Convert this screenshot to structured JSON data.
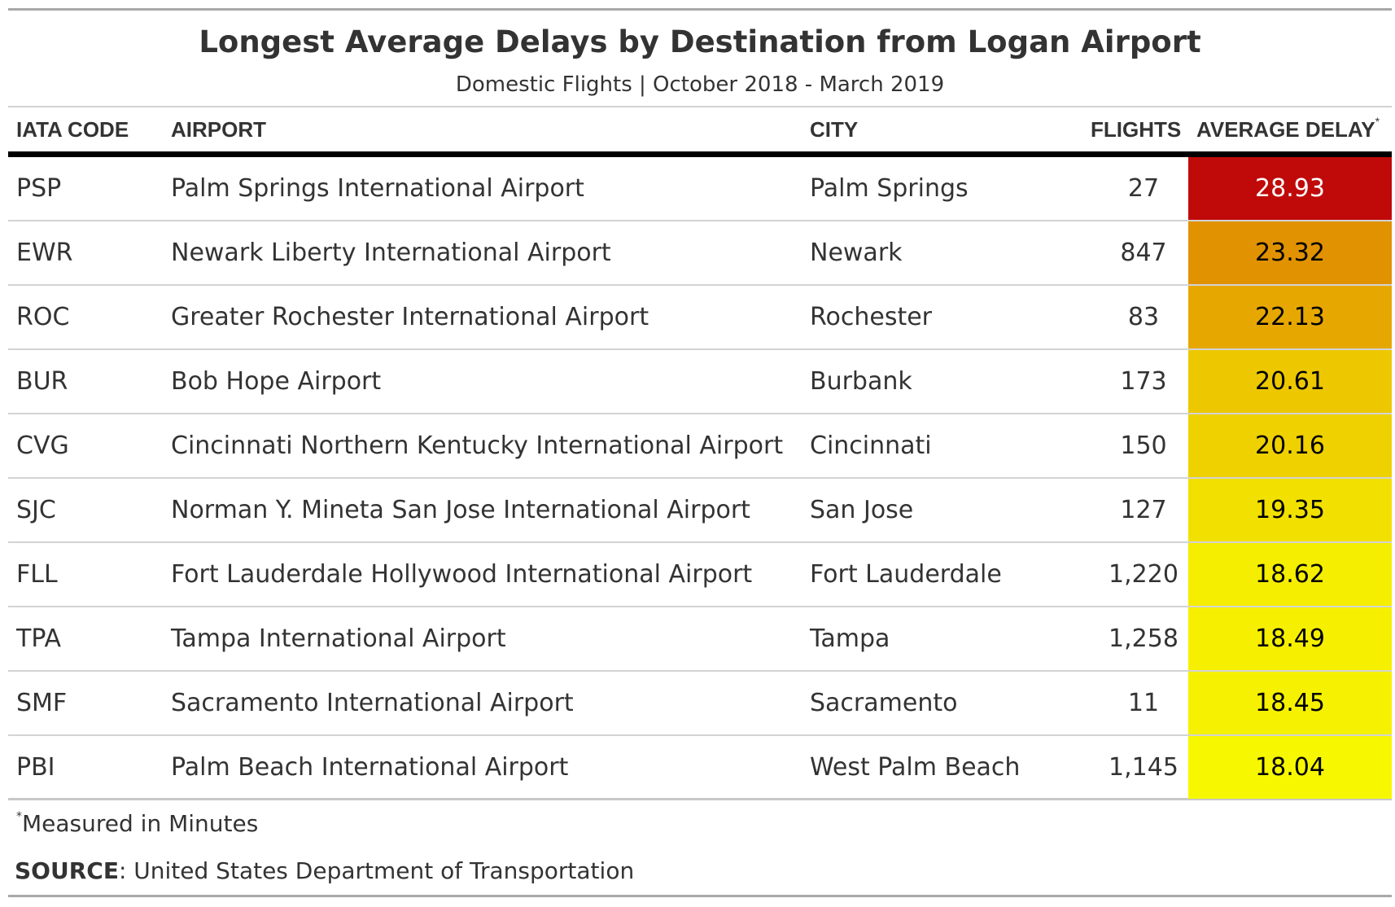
{
  "chart_data": {
    "type": "table",
    "title": "Longest Average Delays by Destination from Logan Airport",
    "subtitle": "Domestic Flights | October 2018 - March 2019",
    "columns": [
      "IATA CODE",
      "AIRPORT",
      "CITY",
      "FLIGHTS",
      "AVERAGE DELAY"
    ],
    "delay_marker": "*",
    "rows": [
      {
        "code": "PSP",
        "airport": "Palm Springs International Airport",
        "city": "Palm Springs",
        "flights": "27",
        "delay": 28.93,
        "delay_label": "28.93",
        "color": "#c00a0a",
        "text_color": "#ffffff"
      },
      {
        "code": "EWR",
        "airport": "Newark Liberty International Airport",
        "city": "Newark",
        "flights": "847",
        "delay": 23.32,
        "delay_label": "23.32",
        "color": "#e09200",
        "text_color": "#000000"
      },
      {
        "code": "ROC",
        "airport": "Greater Rochester International Airport",
        "city": "Rochester",
        "flights": "83",
        "delay": 22.13,
        "delay_label": "22.13",
        "color": "#e6a800",
        "text_color": "#000000"
      },
      {
        "code": "BUR",
        "airport": "Bob Hope Airport",
        "city": "Burbank",
        "flights": "173",
        "delay": 20.61,
        "delay_label": "20.61",
        "color": "#edc800",
        "text_color": "#000000"
      },
      {
        "code": "CVG",
        "airport": "Cincinnati Northern Kentucky International Airport",
        "city": "Cincinnati",
        "flights": "150",
        "delay": 20.16,
        "delay_label": "20.16",
        "color": "#efd100",
        "text_color": "#000000"
      },
      {
        "code": "SJC",
        "airport": "Norman Y. Mineta San Jose International Airport",
        "city": "San Jose",
        "flights": "127",
        "delay": 19.35,
        "delay_label": "19.35",
        "color": "#f2e000",
        "text_color": "#000000"
      },
      {
        "code": "FLL",
        "airport": "Fort Lauderdale Hollywood International Airport",
        "city": "Fort Lauderdale",
        "flights": "1,220",
        "delay": 18.62,
        "delay_label": "18.62",
        "color": "#f5ee00",
        "text_color": "#000000"
      },
      {
        "code": "TPA",
        "airport": "Tampa International Airport",
        "city": "Tampa",
        "flights": "1,258",
        "delay": 18.49,
        "delay_label": "18.49",
        "color": "#f6f000",
        "text_color": "#000000"
      },
      {
        "code": "SMF",
        "airport": "Sacramento International Airport",
        "city": "Sacramento",
        "flights": "11",
        "delay": 18.45,
        "delay_label": "18.45",
        "color": "#f6f100",
        "text_color": "#000000"
      },
      {
        "code": "PBI",
        "airport": "Palm Beach International Airport",
        "city": "West Palm Beach",
        "flights": "1,145",
        "delay": 18.04,
        "delay_label": "18.04",
        "color": "#f7f700",
        "text_color": "#000000"
      }
    ],
    "footnote": "Measured in Minutes",
    "source_label": "SOURCE",
    "source_text": ": United States Department of Transportation"
  }
}
